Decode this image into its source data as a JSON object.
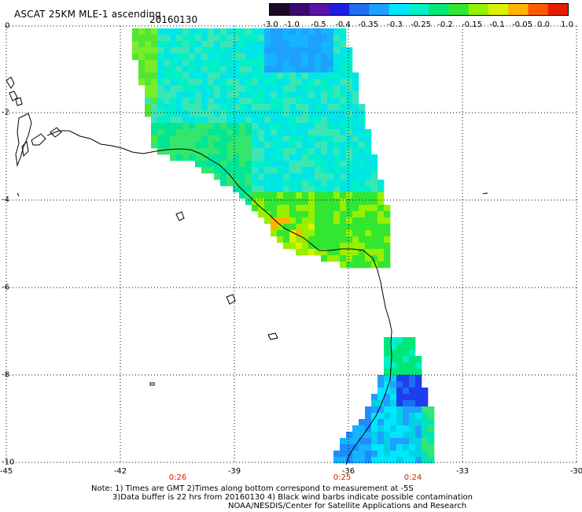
{
  "header": {
    "title": "ASCAT 25KM MLE-1 ascending",
    "date": "20160130"
  },
  "colorbar": {
    "colors": [
      "#1a0a24",
      "#3c0a6e",
      "#5a14a8",
      "#1e1ee0",
      "#1e6ef0",
      "#1ea0ff",
      "#00e6ff",
      "#00f0c8",
      "#00e678",
      "#32e632",
      "#96f000",
      "#dcf000",
      "#ffb400",
      "#ff5a00",
      "#e61e00"
    ],
    "labels": [
      "-3.0",
      "-1.0",
      "-0.5",
      "-0.4",
      "-0.35",
      "-0.3",
      "-0.25",
      "-0.2",
      "-0.15",
      "-0.1",
      "-0.05",
      "0.0",
      "1.0"
    ]
  },
  "axes": {
    "y_labels": [
      "0",
      "-2",
      "-4",
      "-6",
      "-8",
      "-10"
    ],
    "x_labels": [
      "-45",
      "-42",
      "-39",
      "-36",
      "-33",
      "-30"
    ],
    "grid": "dotted"
  },
  "pass_times": [
    "0:26",
    "0:25",
    "0:24"
  ],
  "notes": {
    "line1": "Note: 1) Times are GMT 2)Times along bottom correspond to measurement at -5S",
    "line2": "3)Data buffer is 22 hrs from 20160130 4) Black wind barbs indicate possible contamination",
    "line3": "NOAA/NESDIS/Center for Satellite Applications and Research"
  }
}
